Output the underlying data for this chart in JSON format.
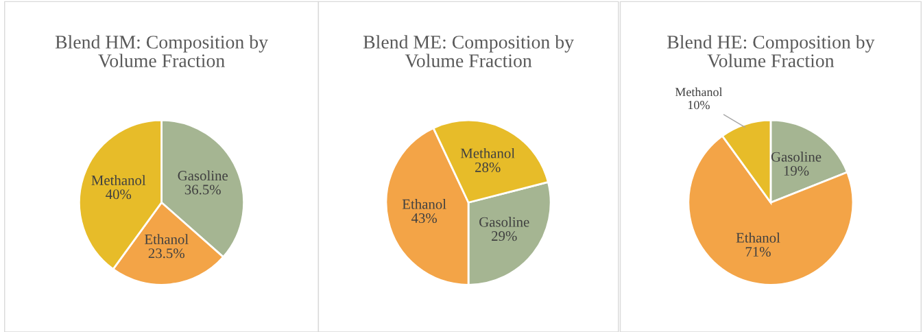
{
  "chart_data": [
    {
      "type": "pie",
      "title": "Blend HM: Composition by Volume Fraction",
      "categories": [
        "Gasoline",
        "Ethanol",
        "Methanol"
      ],
      "values": [
        36.5,
        23.5,
        40
      ],
      "colors": [
        "#a5b592",
        "#f3a447",
        "#e7bc29"
      ],
      "value_labels": [
        "36.5%",
        "23.5%",
        "40%"
      ],
      "legend": false
    },
    {
      "type": "pie",
      "title": "Blend ME: Composition by Volume Fraction",
      "categories": [
        "Gasoline",
        "Ethanol",
        "Methanol"
      ],
      "values": [
        29,
        43,
        28
      ],
      "colors": [
        "#a5b592",
        "#f3a447",
        "#e7bc29"
      ],
      "value_labels": [
        "29%",
        "43%",
        "28%"
      ],
      "legend": false
    },
    {
      "type": "pie",
      "title": "Blend HE: Composition by Volume Fraction",
      "categories": [
        "Gasoline",
        "Ethanol",
        "Methanol"
      ],
      "values": [
        19,
        71,
        10
      ],
      "colors": [
        "#a5b592",
        "#f3a447",
        "#e7bc29"
      ],
      "value_labels": [
        "19%",
        "71%",
        "10%"
      ],
      "legend": false
    }
  ]
}
